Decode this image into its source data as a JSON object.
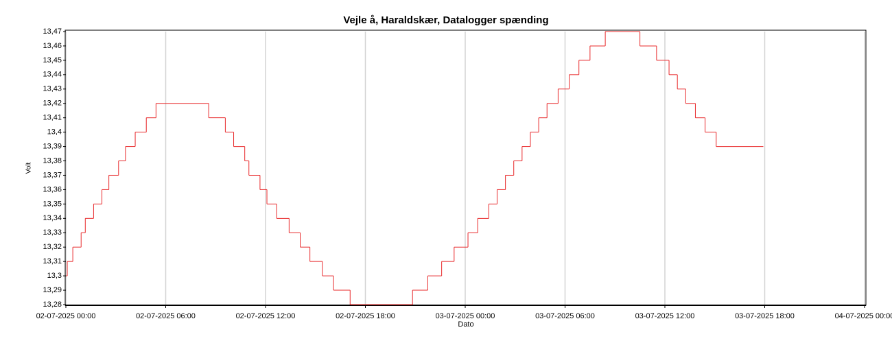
{
  "chart_data": {
    "type": "step-line",
    "title": "Vejle å, Haraldskær, Datalogger spænding",
    "x_label": "Dato",
    "y_label": "Volt",
    "xlim": [
      "02-07-2025 00:00",
      "04-07-2025 00:00"
    ],
    "xticks": [
      "02-07-2025 00:00",
      "02-07-2025 06:00",
      "02-07-2025 12:00",
      "02-07-2025 18:00",
      "03-07-2025 00:00",
      "03-07-2025 06:00",
      "03-07-2025 12:00",
      "03-07-2025 18:00",
      "04-07-2025 00:00"
    ],
    "ylim": [
      13.28,
      13.47
    ],
    "yticks": [
      {
        "value": 13.28,
        "label": "13,28"
      },
      {
        "value": 13.29,
        "label": "13,29"
      },
      {
        "value": 13.3,
        "label": "13,3"
      },
      {
        "value": 13.31,
        "label": "13,31"
      },
      {
        "value": 13.32,
        "label": "13,32"
      },
      {
        "value": 13.33,
        "label": "13,33"
      },
      {
        "value": 13.34,
        "label": "13,34"
      },
      {
        "value": 13.35,
        "label": "13,35"
      },
      {
        "value": 13.36,
        "label": "13,36"
      },
      {
        "value": 13.37,
        "label": "13,37"
      },
      {
        "value": 13.38,
        "label": "13,38"
      },
      {
        "value": 13.39,
        "label": "13,39"
      },
      {
        "value": 13.4,
        "label": "13,4"
      },
      {
        "value": 13.41,
        "label": "13,41"
      },
      {
        "value": 13.42,
        "label": "13,42"
      },
      {
        "value": 13.43,
        "label": "13,43"
      },
      {
        "value": 13.44,
        "label": "13,44"
      },
      {
        "value": 13.45,
        "label": "13,45"
      },
      {
        "value": 13.46,
        "label": "13,46"
      },
      {
        "value": 13.47,
        "label": "13,47"
      }
    ],
    "grid": {
      "x": true,
      "y": false
    },
    "series": [
      {
        "color": "#e8282a",
        "x": [
          "02-07-2025 00:00",
          "02-07-2025 00:05",
          "02-07-2025 00:25",
          "02-07-2025 00:55",
          "02-07-2025 01:10",
          "02-07-2025 01:40",
          "02-07-2025 02:10",
          "02-07-2025 02:35",
          "02-07-2025 03:10",
          "02-07-2025 03:35",
          "02-07-2025 04:10",
          "02-07-2025 04:50",
          "02-07-2025 05:25",
          "02-07-2025 08:35",
          "02-07-2025 09:35",
          "02-07-2025 10:05",
          "02-07-2025 10:45",
          "02-07-2025 11:00",
          "02-07-2025 11:40",
          "02-07-2025 12:05",
          "02-07-2025 12:40",
          "02-07-2025 13:25",
          "02-07-2025 14:05",
          "02-07-2025 14:40",
          "02-07-2025 15:25",
          "02-07-2025 16:05",
          "02-07-2025 17:05",
          "02-07-2025 20:50",
          "02-07-2025 21:45",
          "02-07-2025 22:35",
          "02-07-2025 23:20",
          "03-07-2025 00:10",
          "03-07-2025 00:45",
          "03-07-2025 01:25",
          "03-07-2025 01:55",
          "03-07-2025 02:25",
          "03-07-2025 02:55",
          "03-07-2025 03:25",
          "03-07-2025 03:55",
          "03-07-2025 04:25",
          "03-07-2025 04:55",
          "03-07-2025 05:35",
          "03-07-2025 06:15",
          "03-07-2025 06:50",
          "03-07-2025 07:30",
          "03-07-2025 08:25",
          "03-07-2025 10:30",
          "03-07-2025 11:30",
          "03-07-2025 12:15",
          "03-07-2025 12:45",
          "03-07-2025 13:15",
          "03-07-2025 13:50",
          "03-07-2025 14:25",
          "03-07-2025 15:05",
          "03-07-2025 17:55"
        ],
        "values": [
          13.3,
          13.31,
          13.32,
          13.33,
          13.34,
          13.35,
          13.36,
          13.37,
          13.38,
          13.39,
          13.4,
          13.41,
          13.42,
          13.41,
          13.4,
          13.39,
          13.38,
          13.37,
          13.36,
          13.35,
          13.34,
          13.33,
          13.32,
          13.31,
          13.3,
          13.29,
          13.28,
          13.29,
          13.3,
          13.31,
          13.32,
          13.33,
          13.34,
          13.35,
          13.36,
          13.37,
          13.38,
          13.39,
          13.4,
          13.41,
          13.42,
          13.43,
          13.44,
          13.45,
          13.46,
          13.47,
          13.46,
          13.45,
          13.44,
          13.43,
          13.42,
          13.41,
          13.4,
          13.39,
          13.39
        ]
      }
    ]
  }
}
